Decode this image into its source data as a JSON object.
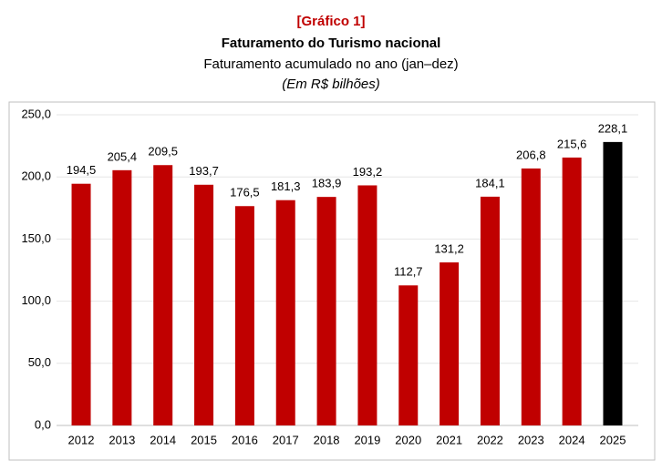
{
  "chart_data": {
    "type": "bar",
    "title_tag": "[Gráfico 1]",
    "title": "Faturamento do Turismo nacional",
    "subtitle": "Faturamento acumulado no ano (jan–dez)",
    "unit_note": "(Em R$ bilhões)",
    "categories": [
      "2012",
      "2013",
      "2014",
      "2015",
      "2016",
      "2017",
      "2018",
      "2019",
      "2020",
      "2021",
      "2022",
      "2023",
      "2024",
      "2025"
    ],
    "values": [
      194.5,
      205.4,
      209.5,
      193.7,
      176.5,
      181.3,
      183.9,
      193.2,
      112.7,
      131.2,
      184.1,
      206.8,
      215.6,
      228.1
    ],
    "value_labels": [
      "194,5",
      "205,4",
      "209,5",
      "193,7",
      "176,5",
      "181,3",
      "183,9",
      "193,2",
      "112,7",
      "131,2",
      "184,1",
      "206,8",
      "215,6",
      "228,1"
    ],
    "colors": [
      "#c00000",
      "#c00000",
      "#c00000",
      "#c00000",
      "#c00000",
      "#c00000",
      "#c00000",
      "#c00000",
      "#c00000",
      "#c00000",
      "#c00000",
      "#c00000",
      "#c00000",
      "#000000"
    ],
    "ylim": [
      0,
      250
    ],
    "yticks": [
      {
        "value": 0,
        "label": "0,0"
      },
      {
        "value": 50,
        "label": "50,0"
      },
      {
        "value": 100,
        "label": "100,0"
      },
      {
        "value": 150,
        "label": "150,0"
      },
      {
        "value": 200,
        "label": "200,0"
      },
      {
        "value": 250,
        "label": "250,0"
      }
    ],
    "grid": true
  }
}
